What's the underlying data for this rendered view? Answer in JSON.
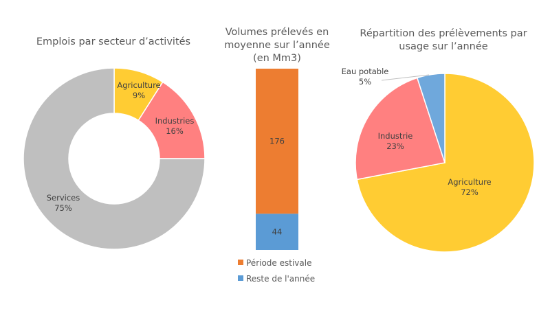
{
  "chart_data": [
    {
      "type": "pie",
      "variant": "donut",
      "title": "Emplois par secteur d’activités",
      "categories": [
        "Agriculture",
        "Industries",
        "Services"
      ],
      "values": [
        9,
        16,
        75
      ],
      "labels": [
        "9%",
        "16%",
        "75%"
      ],
      "colors": [
        "#FFCC33",
        "#FF8080",
        "#BFBFBF"
      ]
    },
    {
      "type": "bar",
      "variant": "stacked",
      "title": "Volumes prélevés en moyenne sur l’année (en Mm3)",
      "categories": [
        ""
      ],
      "series": [
        {
          "name": "Période estivale",
          "values": [
            176
          ],
          "color": "#ED7D31"
        },
        {
          "name": "Reste de l'année",
          "values": [
            44
          ],
          "color": "#5B9BD5"
        }
      ],
      "legend": "bottom"
    },
    {
      "type": "pie",
      "title": "Répartition des prélèvements par usage sur l’année",
      "categories": [
        "Agriculture",
        "Industrie",
        "Eau potable"
      ],
      "values": [
        72,
        23,
        5
      ],
      "labels": [
        "72%",
        "23%",
        "5%"
      ],
      "colors": [
        "#FFCC33",
        "#FF8080",
        "#6FA8DC"
      ]
    }
  ]
}
